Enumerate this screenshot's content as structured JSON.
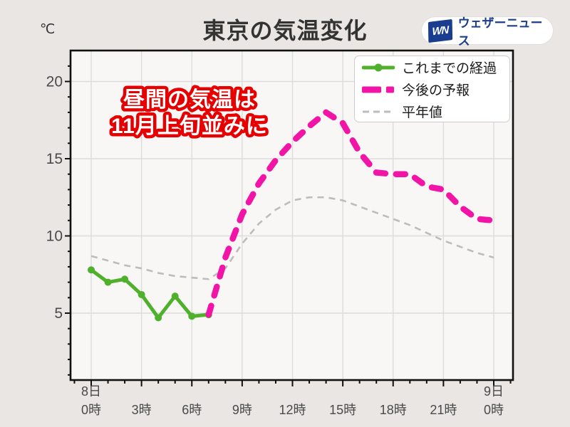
{
  "page": {
    "background": "#e9e6e3",
    "plot_background": "#f8f7f5",
    "grid_color": "#dcdcdc",
    "axis_color": "#111111"
  },
  "header": {
    "title": "東京の気温変化",
    "unit_label": "℃",
    "logo": {
      "mark": "WN",
      "text": "ウェザーニュース",
      "blue": "#1a3d8f"
    }
  },
  "annotation": {
    "lines": [
      "昼間の気温は",
      "11月上旬並みに"
    ],
    "fill": "#ffffff",
    "stroke": "#e60000"
  },
  "legend": {
    "items": [
      {
        "key": "observed",
        "label": "これまでの経過"
      },
      {
        "key": "forecast",
        "label": "今後の予報"
      },
      {
        "key": "normal",
        "label": "平年値"
      }
    ]
  },
  "chart_data": {
    "type": "line",
    "title": "東京の気温変化",
    "ylabel": "℃",
    "xlabel": "",
    "ylim": [
      0.7,
      22
    ],
    "x_unit": "hours from 8日0時",
    "x_range": [
      0,
      24
    ],
    "grid": true,
    "legend_position": "top-right",
    "y_ticks": [
      5,
      10,
      15,
      20
    ],
    "x_ticks": [
      {
        "t": 0,
        "day": "8日",
        "label": "0時"
      },
      {
        "t": 3,
        "label": "3時"
      },
      {
        "t": 6,
        "label": "6時"
      },
      {
        "t": 9,
        "label": "9時"
      },
      {
        "t": 12,
        "label": "12時"
      },
      {
        "t": 15,
        "label": "15時"
      },
      {
        "t": 18,
        "label": "18時"
      },
      {
        "t": 21,
        "label": "21時"
      },
      {
        "t": 24,
        "day": "9日",
        "label": "0時"
      }
    ],
    "series": [
      {
        "name": "平年値",
        "key": "normal",
        "style": "dashed-thin",
        "color": "#bcbcbc",
        "x": [
          0,
          1,
          2,
          3,
          4,
          5,
          6,
          7,
          8,
          9,
          10,
          11,
          12,
          13,
          14,
          15,
          16,
          17,
          18,
          19,
          20,
          21,
          22,
          23,
          24
        ],
        "values": [
          8.7,
          8.4,
          8.1,
          7.9,
          7.6,
          7.4,
          7.3,
          7.2,
          7.9,
          9.5,
          10.8,
          11.7,
          12.3,
          12.5,
          12.5,
          12.3,
          11.9,
          11.5,
          11.1,
          10.7,
          10.2,
          9.7,
          9.3,
          8.9,
          8.6
        ]
      },
      {
        "name": "これまでの経過",
        "key": "observed",
        "style": "solid-markers",
        "color": "#4fb02b",
        "x": [
          0,
          1,
          2,
          3,
          4,
          5,
          6,
          7
        ],
        "values": [
          7.8,
          7.0,
          7.2,
          6.2,
          4.7,
          6.1,
          4.8,
          4.9
        ]
      },
      {
        "name": "今後の予報",
        "key": "forecast",
        "style": "dashed-thick",
        "color": "#f213a7",
        "x": [
          7,
          8,
          9,
          10,
          11,
          12,
          13,
          14,
          15,
          16,
          17,
          18,
          19,
          20,
          21,
          22,
          23,
          24
        ],
        "values": [
          4.9,
          8.6,
          11.4,
          13.4,
          14.9,
          16.1,
          17.1,
          18.0,
          17.3,
          15.4,
          14.1,
          14.0,
          14.0,
          13.2,
          13.0,
          11.9,
          11.1,
          11.0
        ]
      }
    ]
  }
}
